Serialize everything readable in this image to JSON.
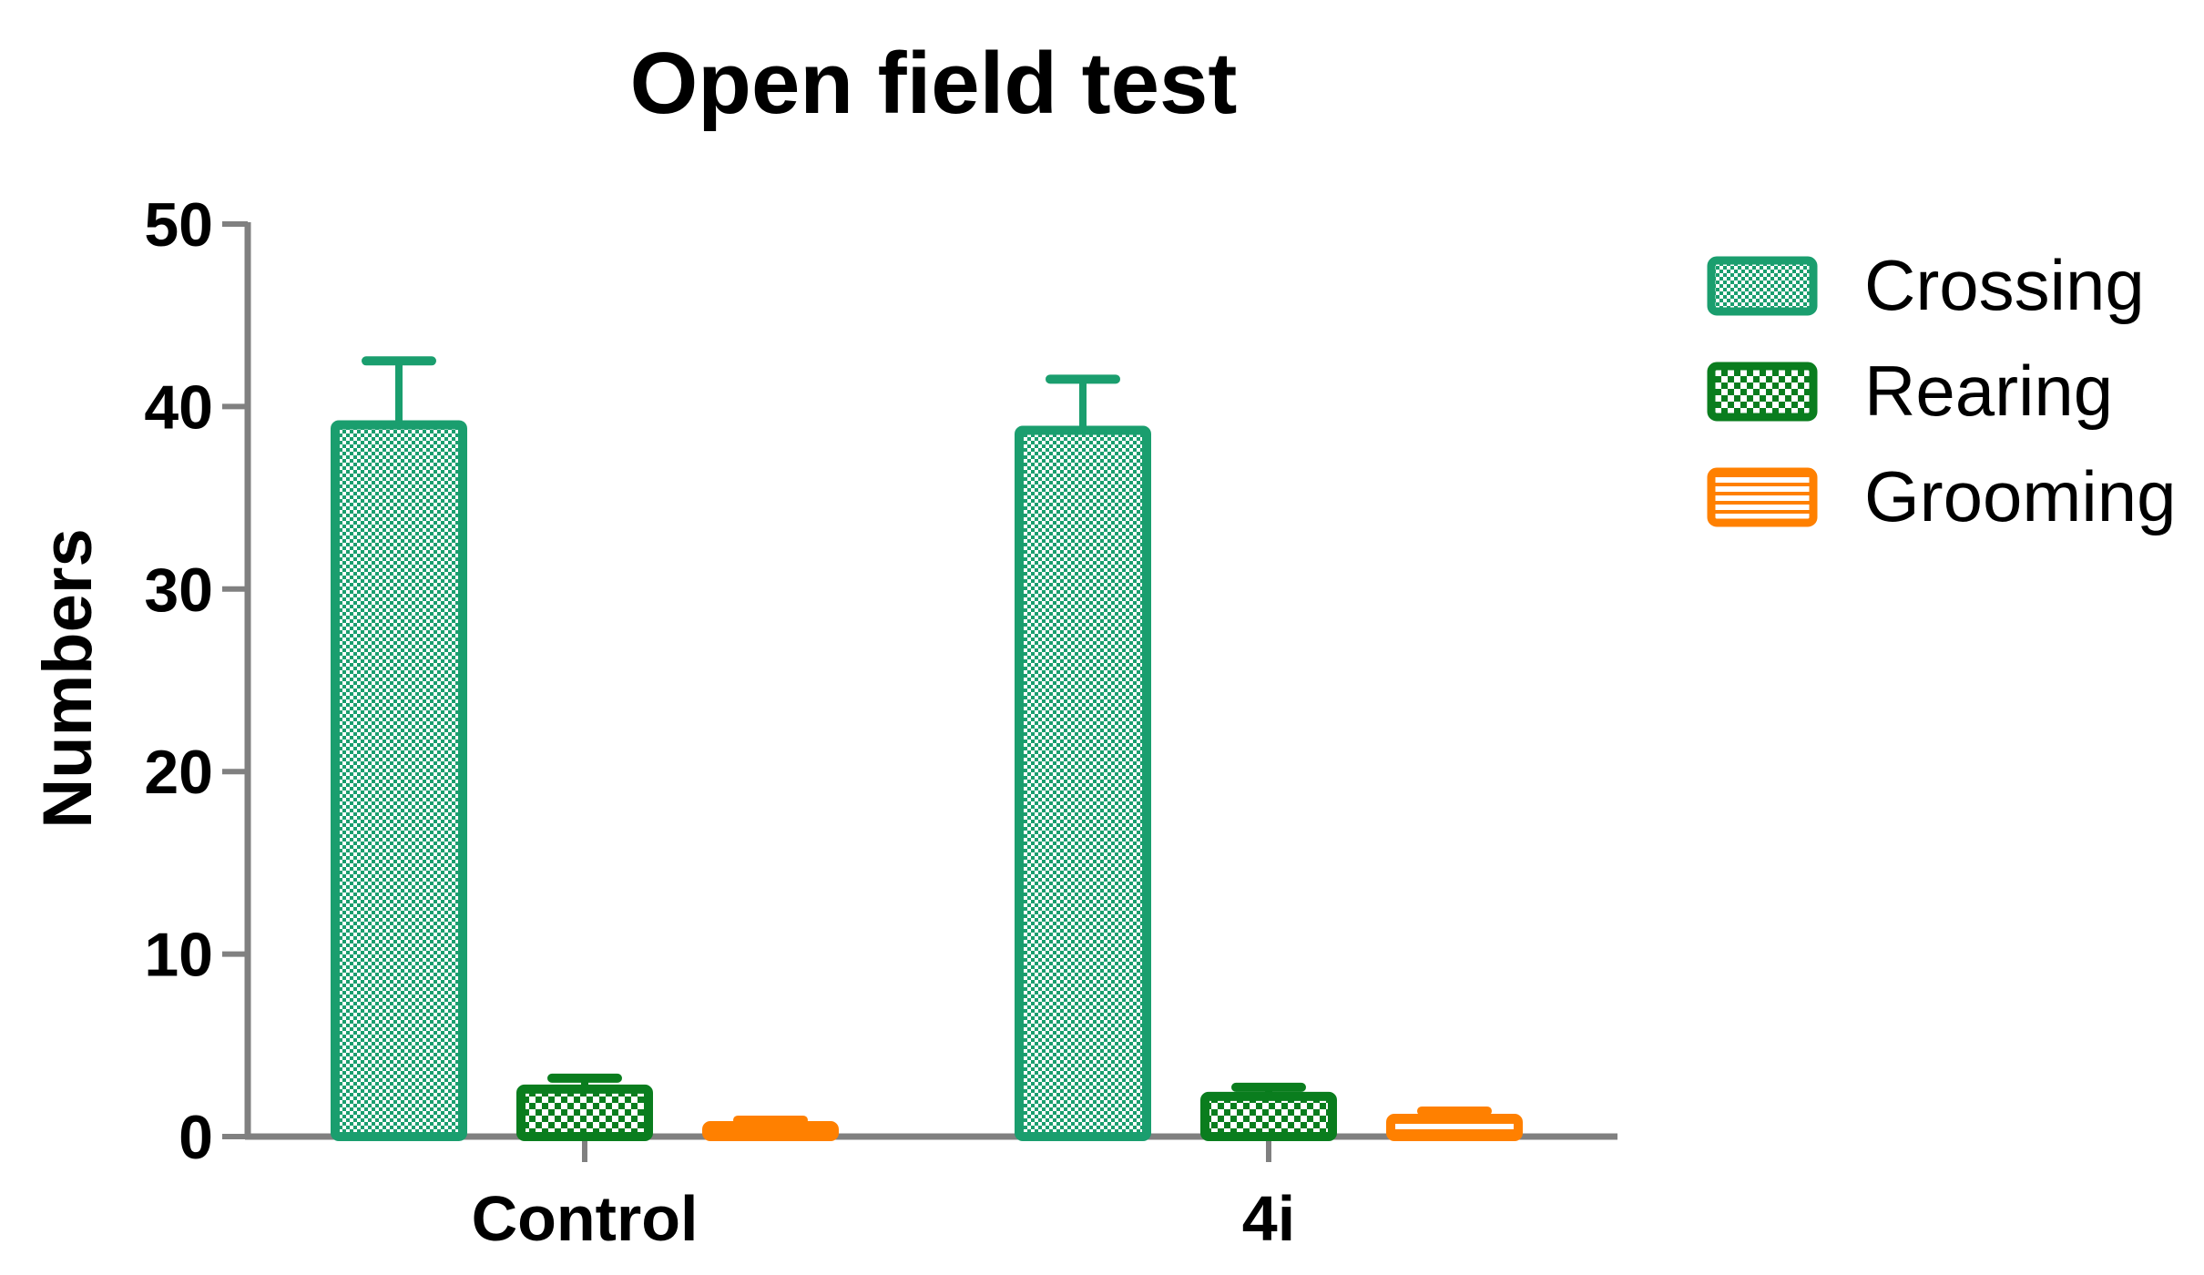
{
  "chart_data": {
    "type": "bar",
    "title": "Open field test",
    "xlabel": "",
    "ylabel": "Numbers",
    "ylim": [
      0,
      50
    ],
    "yticks": [
      0,
      10,
      20,
      30,
      40,
      50
    ],
    "categories": [
      "Control",
      "4i"
    ],
    "series": [
      {
        "name": "Crossing",
        "values": [
          39,
          38.7
        ],
        "error": [
          3.5,
          2.8
        ],
        "color": "#1a9e6e",
        "pattern": "fine-dots"
      },
      {
        "name": "Rearing",
        "values": [
          2.6,
          2.2
        ],
        "error": [
          0.6,
          0.5
        ],
        "color": "#0a7d1e",
        "pattern": "checker"
      },
      {
        "name": "Grooming",
        "values": [
          0.6,
          1.0
        ],
        "error": [
          0.3,
          0.4
        ],
        "color": "#ff8000",
        "pattern": "horizontal-lines"
      }
    ],
    "legend_position": "right",
    "grid": false
  }
}
